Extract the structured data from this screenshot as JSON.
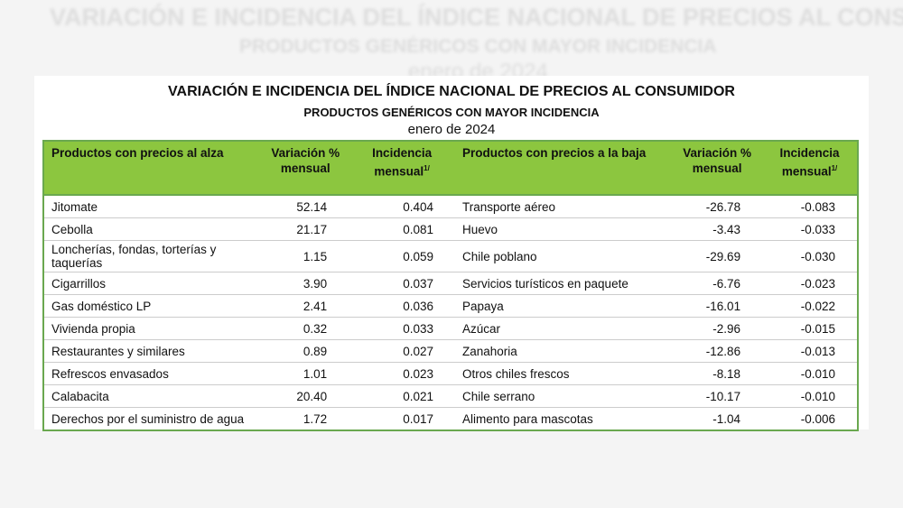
{
  "header": {
    "title": "VARIACIÓN E INCIDENCIA DEL ÍNDICE NACIONAL DE PRECIOS AL CONSUMIDOR",
    "subtitle": "PRODUCTOS GENÉRICOS CON MAYOR INCIDENCIA",
    "date": "enero de 2024"
  },
  "table": {
    "columns": [
      {
        "text": "Productos con precios al alza"
      },
      {
        "text": "Variación % mensual"
      },
      {
        "text": "Incidencia mensual",
        "note": "1/"
      },
      {
        "text": "Productos con precios a la baja"
      },
      {
        "text": "Variación % mensual"
      },
      {
        "text": "Incidencia mensual",
        "note": "1/"
      }
    ],
    "rows": [
      [
        "Jitomate",
        "52.14",
        "0.404",
        "Transporte aéreo",
        "-26.78",
        "-0.083"
      ],
      [
        "Cebolla",
        "21.17",
        "0.081",
        "Huevo",
        "-3.43",
        "-0.033"
      ],
      [
        "Loncherías, fondas, torterías y taquerías",
        "1.15",
        "0.059",
        "Chile poblano",
        "-29.69",
        "-0.030"
      ],
      [
        "Cigarrillos",
        "3.90",
        "0.037",
        "Servicios turísticos en paquete",
        "-6.76",
        "-0.023"
      ],
      [
        "Gas doméstico LP",
        "2.41",
        "0.036",
        "Papaya",
        "-16.01",
        "-0.022"
      ],
      [
        "Vivienda propia",
        "0.32",
        "0.033",
        "Azúcar",
        "-2.96",
        "-0.015"
      ],
      [
        "Restaurantes y similares",
        "0.89",
        "0.027",
        "Zanahoria",
        "-12.86",
        "-0.013"
      ],
      [
        "Refrescos envasados",
        "1.01",
        "0.023",
        "Otros chiles frescos",
        "-8.18",
        "-0.010"
      ],
      [
        "Calabacita",
        "20.40",
        "0.021",
        "Chile serrano",
        "-10.17",
        "-0.010"
      ],
      [
        "Derechos por el suministro de agua",
        "1.72",
        "0.017",
        "Alimento para mascotas",
        "-1.04",
        "-0.006"
      ]
    ]
  }
}
